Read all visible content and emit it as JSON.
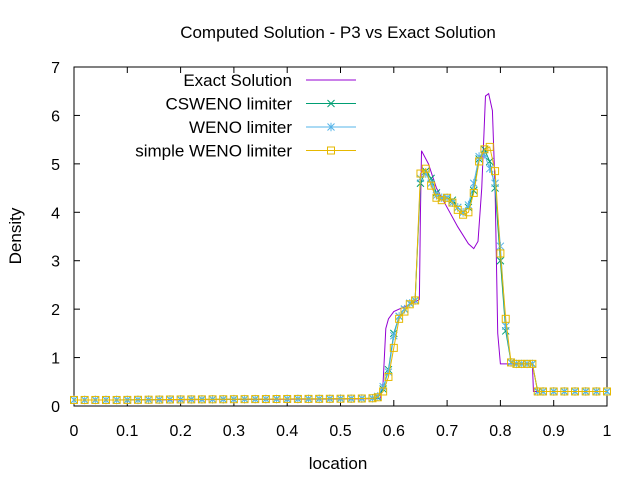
{
  "chart_data": {
    "type": "line",
    "title": "Computed Solution - P3 vs Exact Solution",
    "xlabel": "location",
    "ylabel": "Density",
    "xlim": [
      0,
      1
    ],
    "ylim": [
      0,
      7
    ],
    "x_ticks": [
      "0",
      "0.1",
      "0.2",
      "0.3",
      "0.4",
      "0.5",
      "0.6",
      "0.7",
      "0.8",
      "0.9",
      "1"
    ],
    "y_ticks": [
      "0",
      "1",
      "2",
      "3",
      "4",
      "5",
      "6",
      "7"
    ],
    "grid": false,
    "legend_position": "top-right",
    "series": [
      {
        "name": "Exact Solution",
        "color": "#9400d3",
        "marker": "none",
        "points": [
          [
            0,
            0.125
          ],
          [
            0.1,
            0.125
          ],
          [
            0.5,
            0.143
          ],
          [
            0.55,
            0.15
          ],
          [
            0.575,
            0.16
          ],
          [
            0.58,
            0.5
          ],
          [
            0.585,
            1.6
          ],
          [
            0.59,
            1.8
          ],
          [
            0.6,
            1.95
          ],
          [
            0.62,
            2.05
          ],
          [
            0.64,
            2.15
          ],
          [
            0.648,
            2.2
          ],
          [
            0.65,
            4.0
          ],
          [
            0.652,
            5.27
          ],
          [
            0.665,
            5.0
          ],
          [
            0.68,
            4.5
          ],
          [
            0.7,
            4.1
          ],
          [
            0.72,
            3.7
          ],
          [
            0.74,
            3.35
          ],
          [
            0.75,
            3.25
          ],
          [
            0.758,
            3.4
          ],
          [
            0.765,
            4.5
          ],
          [
            0.772,
            6.4
          ],
          [
            0.778,
            6.45
          ],
          [
            0.785,
            6.1
          ],
          [
            0.79,
            4.5
          ],
          [
            0.795,
            1.5
          ],
          [
            0.8,
            0.87
          ],
          [
            0.85,
            0.87
          ],
          [
            0.86,
            0.87
          ],
          [
            0.862,
            0.3
          ],
          [
            0.9,
            0.3
          ],
          [
            1,
            0.3
          ]
        ]
      },
      {
        "name": "CSWENO limiter",
        "color": "#009e73",
        "marker": "x",
        "points": [
          [
            0,
            0.125
          ],
          [
            0.02,
            0.125
          ],
          [
            0.04,
            0.125
          ],
          [
            0.06,
            0.125
          ],
          [
            0.08,
            0.125
          ],
          [
            0.1,
            0.126
          ],
          [
            0.12,
            0.128
          ],
          [
            0.14,
            0.13
          ],
          [
            0.16,
            0.132
          ],
          [
            0.18,
            0.134
          ],
          [
            0.2,
            0.135
          ],
          [
            0.22,
            0.136
          ],
          [
            0.24,
            0.137
          ],
          [
            0.26,
            0.138
          ],
          [
            0.28,
            0.139
          ],
          [
            0.3,
            0.14
          ],
          [
            0.32,
            0.141
          ],
          [
            0.34,
            0.142
          ],
          [
            0.36,
            0.143
          ],
          [
            0.38,
            0.144
          ],
          [
            0.4,
            0.145
          ],
          [
            0.42,
            0.146
          ],
          [
            0.44,
            0.147
          ],
          [
            0.46,
            0.148
          ],
          [
            0.48,
            0.149
          ],
          [
            0.5,
            0.15
          ],
          [
            0.52,
            0.152
          ],
          [
            0.54,
            0.155
          ],
          [
            0.56,
            0.16
          ],
          [
            0.57,
            0.18
          ],
          [
            0.58,
            0.35
          ],
          [
            0.59,
            0.75
          ],
          [
            0.6,
            1.5
          ],
          [
            0.61,
            1.85
          ],
          [
            0.62,
            2.0
          ],
          [
            0.63,
            2.12
          ],
          [
            0.64,
            2.18
          ],
          [
            0.65,
            4.6
          ],
          [
            0.66,
            4.85
          ],
          [
            0.67,
            4.7
          ],
          [
            0.68,
            4.4
          ],
          [
            0.69,
            4.3
          ],
          [
            0.7,
            4.3
          ],
          [
            0.71,
            4.25
          ],
          [
            0.72,
            4.1
          ],
          [
            0.73,
            4.0
          ],
          [
            0.74,
            4.1
          ],
          [
            0.75,
            4.45
          ],
          [
            0.76,
            5.1
          ],
          [
            0.77,
            5.3
          ],
          [
            0.78,
            5.05
          ],
          [
            0.79,
            4.5
          ],
          [
            0.8,
            3.0
          ],
          [
            0.81,
            1.55
          ],
          [
            0.82,
            0.9
          ],
          [
            0.83,
            0.87
          ],
          [
            0.84,
            0.87
          ],
          [
            0.85,
            0.87
          ],
          [
            0.86,
            0.87
          ],
          [
            0.87,
            0.3
          ],
          [
            0.88,
            0.3
          ],
          [
            0.9,
            0.3
          ],
          [
            0.92,
            0.3
          ],
          [
            0.94,
            0.3
          ],
          [
            0.96,
            0.3
          ],
          [
            0.98,
            0.3
          ],
          [
            1,
            0.3
          ]
        ]
      },
      {
        "name": "WENO limiter",
        "color": "#56b4e9",
        "marker": "*",
        "points": [
          [
            0,
            0.125
          ],
          [
            0.02,
            0.125
          ],
          [
            0.04,
            0.125
          ],
          [
            0.06,
            0.125
          ],
          [
            0.08,
            0.125
          ],
          [
            0.1,
            0.126
          ],
          [
            0.12,
            0.128
          ],
          [
            0.14,
            0.13
          ],
          [
            0.16,
            0.132
          ],
          [
            0.18,
            0.134
          ],
          [
            0.2,
            0.135
          ],
          [
            0.22,
            0.136
          ],
          [
            0.24,
            0.137
          ],
          [
            0.26,
            0.138
          ],
          [
            0.28,
            0.139
          ],
          [
            0.3,
            0.14
          ],
          [
            0.32,
            0.141
          ],
          [
            0.34,
            0.142
          ],
          [
            0.36,
            0.143
          ],
          [
            0.38,
            0.144
          ],
          [
            0.4,
            0.145
          ],
          [
            0.42,
            0.146
          ],
          [
            0.44,
            0.147
          ],
          [
            0.46,
            0.148
          ],
          [
            0.48,
            0.149
          ],
          [
            0.5,
            0.15
          ],
          [
            0.52,
            0.152
          ],
          [
            0.54,
            0.155
          ],
          [
            0.56,
            0.16
          ],
          [
            0.57,
            0.2
          ],
          [
            0.58,
            0.4
          ],
          [
            0.59,
            0.7
          ],
          [
            0.6,
            1.45
          ],
          [
            0.61,
            1.85
          ],
          [
            0.62,
            2.0
          ],
          [
            0.63,
            2.12
          ],
          [
            0.64,
            2.18
          ],
          [
            0.65,
            4.7
          ],
          [
            0.66,
            4.8
          ],
          [
            0.67,
            4.6
          ],
          [
            0.68,
            4.35
          ],
          [
            0.69,
            4.3
          ],
          [
            0.7,
            4.3
          ],
          [
            0.71,
            4.2
          ],
          [
            0.72,
            4.1
          ],
          [
            0.73,
            4.0
          ],
          [
            0.74,
            4.15
          ],
          [
            0.75,
            4.6
          ],
          [
            0.76,
            5.15
          ],
          [
            0.77,
            5.2
          ],
          [
            0.78,
            4.9
          ],
          [
            0.79,
            4.6
          ],
          [
            0.8,
            3.3
          ],
          [
            0.81,
            1.65
          ],
          [
            0.82,
            0.9
          ],
          [
            0.83,
            0.87
          ],
          [
            0.84,
            0.87
          ],
          [
            0.85,
            0.87
          ],
          [
            0.86,
            0.87
          ],
          [
            0.87,
            0.3
          ],
          [
            0.88,
            0.3
          ],
          [
            0.9,
            0.3
          ],
          [
            0.92,
            0.3
          ],
          [
            0.94,
            0.3
          ],
          [
            0.96,
            0.3
          ],
          [
            0.98,
            0.3
          ],
          [
            1,
            0.3
          ]
        ]
      },
      {
        "name": "simple WENO limiter",
        "color": "#e6b800",
        "marker": "square",
        "points": [
          [
            0,
            0.125
          ],
          [
            0.02,
            0.125
          ],
          [
            0.04,
            0.125
          ],
          [
            0.06,
            0.125
          ],
          [
            0.08,
            0.125
          ],
          [
            0.1,
            0.126
          ],
          [
            0.12,
            0.128
          ],
          [
            0.14,
            0.13
          ],
          [
            0.16,
            0.132
          ],
          [
            0.18,
            0.134
          ],
          [
            0.2,
            0.135
          ],
          [
            0.22,
            0.136
          ],
          [
            0.24,
            0.137
          ],
          [
            0.26,
            0.138
          ],
          [
            0.28,
            0.139
          ],
          [
            0.3,
            0.14
          ],
          [
            0.32,
            0.141
          ],
          [
            0.34,
            0.142
          ],
          [
            0.36,
            0.143
          ],
          [
            0.38,
            0.144
          ],
          [
            0.4,
            0.145
          ],
          [
            0.42,
            0.146
          ],
          [
            0.44,
            0.147
          ],
          [
            0.46,
            0.148
          ],
          [
            0.48,
            0.149
          ],
          [
            0.5,
            0.15
          ],
          [
            0.52,
            0.152
          ],
          [
            0.54,
            0.155
          ],
          [
            0.56,
            0.16
          ],
          [
            0.57,
            0.18
          ],
          [
            0.58,
            0.3
          ],
          [
            0.59,
            0.6
          ],
          [
            0.6,
            1.2
          ],
          [
            0.61,
            1.8
          ],
          [
            0.62,
            1.95
          ],
          [
            0.63,
            2.1
          ],
          [
            0.64,
            2.18
          ],
          [
            0.65,
            4.8
          ],
          [
            0.66,
            4.9
          ],
          [
            0.67,
            4.55
          ],
          [
            0.68,
            4.3
          ],
          [
            0.69,
            4.25
          ],
          [
            0.7,
            4.3
          ],
          [
            0.71,
            4.2
          ],
          [
            0.72,
            4.05
          ],
          [
            0.73,
            3.95
          ],
          [
            0.74,
            4.0
          ],
          [
            0.75,
            4.4
          ],
          [
            0.76,
            5.05
          ],
          [
            0.77,
            5.3
          ],
          [
            0.78,
            5.35
          ],
          [
            0.79,
            4.85
          ],
          [
            0.8,
            3.15
          ],
          [
            0.81,
            1.8
          ],
          [
            0.82,
            0.9
          ],
          [
            0.83,
            0.87
          ],
          [
            0.84,
            0.87
          ],
          [
            0.85,
            0.87
          ],
          [
            0.86,
            0.87
          ],
          [
            0.87,
            0.3
          ],
          [
            0.88,
            0.3
          ],
          [
            0.9,
            0.3
          ],
          [
            0.92,
            0.3
          ],
          [
            0.94,
            0.3
          ],
          [
            0.96,
            0.3
          ],
          [
            0.98,
            0.3
          ],
          [
            1,
            0.3
          ]
        ]
      }
    ]
  }
}
